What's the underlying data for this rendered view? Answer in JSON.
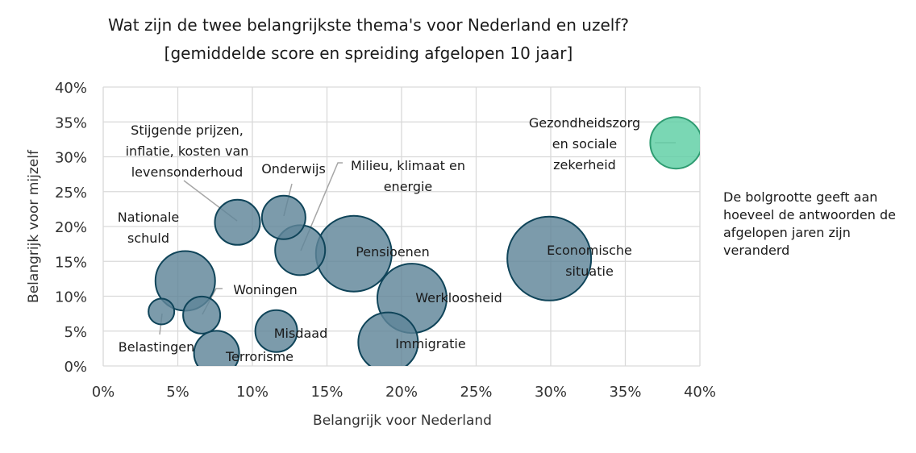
{
  "chart_data": {
    "type": "bubble",
    "title": "Wat zijn de twee belangrijkste thema's voor Nederland en uzelf?",
    "subtitle": "[gemiddelde score en spreiding afgelopen 10 jaar]",
    "xlabel": "Belangrijk voor Nederland",
    "ylabel": "Belangrijk voor mijzelf",
    "xlim": [
      0,
      40
    ],
    "ylim": [
      0,
      40
    ],
    "x_ticks": [
      "0%",
      "5%",
      "10%",
      "15%",
      "20%",
      "25%",
      "30%",
      "35%",
      "40%"
    ],
    "y_ticks": [
      "0%",
      "5%",
      "10%",
      "15%",
      "20%",
      "25%",
      "30%",
      "35%",
      "40%"
    ],
    "grid": true,
    "size_note": "De bolgrootte geeft aan hoeveel de antwoorden de afgelopen jaren zijn veranderd",
    "colors": {
      "default": "#5f8599",
      "default_stroke": "#0f4459",
      "highlight": "#5dcea3",
      "highlight_stroke": "#2f9c72",
      "leader": "#a6a6a6",
      "grid": "#d9d9d9"
    },
    "series": [
      {
        "name": "Gezondheidszorg en sociale zekerheid",
        "label_lines": [
          "Gezondheidszorg",
          "en sociale",
          "zekerheid"
        ],
        "x": 38.4,
        "y": 32.0,
        "size": 32,
        "highlight": true
      },
      {
        "name": "Economische situatie",
        "label_lines": [
          "Economische",
          "situatie"
        ],
        "x": 29.9,
        "y": 15.4,
        "size": 52
      },
      {
        "name": "Pensioenen",
        "label_lines": [
          "Pensioenen"
        ],
        "x": 16.8,
        "y": 16.1,
        "size": 47
      },
      {
        "name": "Werkloosheid",
        "label_lines": [
          "Werkloosheid"
        ],
        "x": 20.7,
        "y": 9.7,
        "size": 43
      },
      {
        "name": "Immigratie",
        "label_lines": [
          "Immigratie"
        ],
        "x": 19.1,
        "y": 3.4,
        "size": 37
      },
      {
        "name": "Milieu, klimaat en energie",
        "label_lines": [
          "Milieu, klimaat en",
          "energie"
        ],
        "x": 13.2,
        "y": 16.6,
        "size": 31
      },
      {
        "name": "Onderwijs",
        "label_lines": [
          "Onderwijs"
        ],
        "x": 12.1,
        "y": 21.3,
        "size": 27
      },
      {
        "name": "Stijgende prijzen, inflatie, kosten van levensonderhoud",
        "label_lines": [
          "Stijgende prijzen,",
          "inflatie, kosten van",
          "levensonderhoud"
        ],
        "x": 9.0,
        "y": 20.6,
        "size": 28
      },
      {
        "name": "Nationale schuld",
        "label_lines": [
          "Nationale",
          "schuld"
        ],
        "x": 5.5,
        "y": 12.2,
        "size": 37
      },
      {
        "name": "Woningen",
        "label_lines": [
          "Woningen"
        ],
        "x": 6.6,
        "y": 7.3,
        "size": 23
      },
      {
        "name": "Belastingen",
        "label_lines": [
          "Belastingen"
        ],
        "x": 3.9,
        "y": 7.8,
        "size": 16
      },
      {
        "name": "Misdaad",
        "label_lines": [
          "Misdaad"
        ],
        "x": 11.6,
        "y": 5.0,
        "size": 26
      },
      {
        "name": "Terrorisme",
        "label_lines": [
          "Terrorisme"
        ],
        "x": 7.6,
        "y": 1.8,
        "size": 28
      }
    ]
  }
}
